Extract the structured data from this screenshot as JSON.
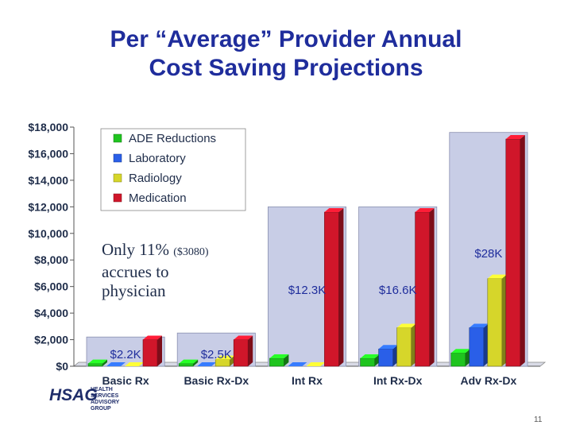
{
  "slide": {
    "title_line1": "Per “Average” Provider Annual",
    "title_line2": "Cost Saving Projections",
    "callout_main_1": "Only 11%",
    "callout_small": "($3080)",
    "callout_main_2": "accrues to",
    "callout_main_3": "physician",
    "logo_text": "HSAG",
    "logo_sub_1": "HEALTH SERVICES",
    "logo_sub_2": "ADVISORY GROUP",
    "page_number": "11"
  },
  "chart_data": {
    "type": "bar",
    "categories": [
      "Basic Rx",
      "Basic Rx-Dx",
      "Int Rx",
      "Int Rx-Dx",
      "Adv Rx-Dx"
    ],
    "series": [
      {
        "name": "ADE Reductions",
        "values": [
          200,
          200,
          600,
          600,
          1000
        ],
        "color": "#1fc41f"
      },
      {
        "name": "Laboratory",
        "values": [
          0,
          0,
          0,
          1300,
          2900
        ],
        "color": "#2a5fe8"
      },
      {
        "name": "Radiology",
        "values": [
          0,
          500,
          0,
          2900,
          6600
        ],
        "color": "#d6d62a"
      },
      {
        "name": "Medication",
        "values": [
          2000,
          2000,
          11600,
          11600,
          17100
        ],
        "color": "#d0162a"
      }
    ],
    "totals": [
      2200,
      2500,
      12300,
      16600,
      28000
    ],
    "total_labels": [
      "$2.2K",
      "$2.5K",
      "$12.3K",
      "$16.6K",
      "$28K"
    ],
    "backdrop_heights": [
      2200,
      2500,
      12000,
      12000,
      17600
    ],
    "yticks": [
      "$0",
      "$2,000",
      "$4,000",
      "$6,000",
      "$8,000",
      "$10,000",
      "$12,000",
      "$14,000",
      "$16,000",
      "$18,000"
    ],
    "ylim": [
      0,
      18000
    ],
    "title": "",
    "xlabel": "",
    "ylabel": "",
    "legend_position": "top-left"
  }
}
